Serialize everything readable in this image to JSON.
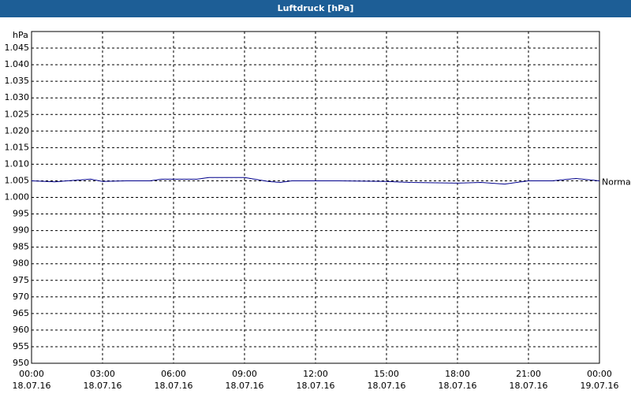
{
  "chart_data": {
    "type": "line",
    "title": "Luftdruck [hPa]",
    "y_label": "hPa",
    "x": [
      0,
      1,
      1.5,
      2.5,
      3,
      4,
      5,
      5.5,
      7,
      7.5,
      9,
      10,
      10.5,
      11,
      12,
      13,
      15,
      16,
      18,
      19,
      20,
      20.5,
      21,
      22,
      23,
      24
    ],
    "series": [
      {
        "name": "Normal",
        "color": "#00008b",
        "values": [
          1005,
          1004.7,
          1005,
          1005.5,
          1004.8,
          1005,
          1005,
          1005.5,
          1005.5,
          1006,
          1006,
          1004.8,
          1004.5,
          1005,
          1005,
          1005,
          1004.8,
          1004.5,
          1004.3,
          1004.5,
          1004,
          1004.5,
          1005,
          1005,
          1005.7,
          1005
        ]
      }
    ],
    "xlim": [
      0,
      24
    ],
    "xticks": [
      {
        "value": 0,
        "label": "00:00\n18.07.16"
      },
      {
        "value": 3,
        "label": "03:00\n18.07.16"
      },
      {
        "value": 6,
        "label": "06:00\n18.07.16"
      },
      {
        "value": 9,
        "label": "09:00\n18.07.16"
      },
      {
        "value": 12,
        "label": "12:00\n18.07.16"
      },
      {
        "value": 15,
        "label": "15:00\n18.07.16"
      },
      {
        "value": 18,
        "label": "18:00\n18.07.16"
      },
      {
        "value": 21,
        "label": "21:00\n18.07.16"
      },
      {
        "value": 24,
        "label": "00:00\n19.07.16"
      }
    ],
    "ylim": [
      950,
      1050
    ],
    "yticks": [
      950,
      955,
      960,
      965,
      970,
      975,
      980,
      985,
      990,
      995,
      {
        "value": 1000,
        "label": "1.000"
      },
      {
        "value": 1005,
        "label": "1.005"
      },
      {
        "value": 1010,
        "label": "1.010"
      },
      {
        "value": 1015,
        "label": "1.015"
      },
      {
        "value": 1020,
        "label": "1.020"
      },
      {
        "value": 1025,
        "label": "1.025"
      },
      {
        "value": 1030,
        "label": "1.030"
      },
      {
        "value": 1035,
        "label": "1.035"
      },
      {
        "value": 1040,
        "label": "1.040"
      },
      {
        "value": 1045,
        "label": "1.045"
      }
    ],
    "grid": true
  }
}
